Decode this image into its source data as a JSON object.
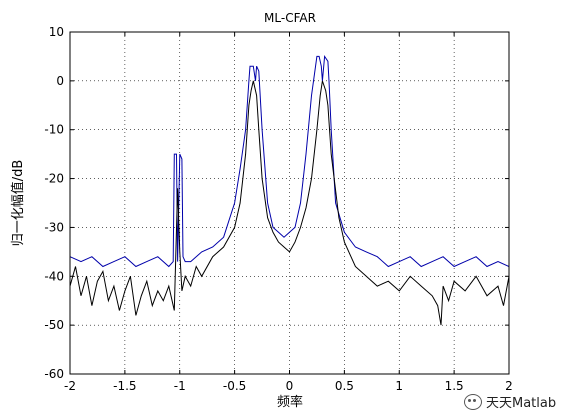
{
  "chart_data": {
    "type": "line",
    "title": "ML-CFAR",
    "xlabel": "频率",
    "ylabel": "归一化幅值/dB",
    "xlim": [
      -2,
      2
    ],
    "ylim": [
      -60,
      10
    ],
    "xticks": [
      -2,
      -1.5,
      -1,
      -0.5,
      0,
      0.5,
      1,
      1.5,
      2
    ],
    "xtick_labels": [
      "-2",
      "-1.5",
      "-1",
      "-0.5",
      "0",
      "0.5",
      "1",
      "1.5",
      "2"
    ],
    "yticks": [
      10,
      0,
      -10,
      -20,
      -30,
      -40,
      -50,
      -60
    ],
    "ytick_labels": [
      "10",
      "0",
      "-10",
      "-20",
      "-30",
      "-40",
      "-50",
      "-60"
    ],
    "grid": true,
    "series": [
      {
        "color": "#0000aa",
        "x": [
          -2.0,
          -1.9,
          -1.8,
          -1.7,
          -1.6,
          -1.5,
          -1.4,
          -1.3,
          -1.2,
          -1.1,
          -1.06,
          -1.05,
          -1.03,
          -1.02,
          -1.0,
          -0.98,
          -0.97,
          -0.95,
          -0.9,
          -0.8,
          -0.7,
          -0.6,
          -0.5,
          -0.45,
          -0.4,
          -0.37,
          -0.36,
          -0.33,
          -0.31,
          -0.3,
          -0.28,
          -0.25,
          -0.2,
          -0.15,
          -0.1,
          -0.05,
          0.0,
          0.05,
          0.1,
          0.15,
          0.2,
          0.25,
          0.27,
          0.29,
          0.3,
          0.32,
          0.35,
          0.36,
          0.38,
          0.42,
          0.5,
          0.6,
          0.7,
          0.8,
          0.9,
          1.0,
          1.1,
          1.2,
          1.3,
          1.4,
          1.5,
          1.6,
          1.7,
          1.8,
          1.9,
          2.0
        ],
        "y": [
          -36,
          -37,
          -36,
          -38,
          -37,
          -36,
          -38,
          -37,
          -36,
          -38,
          -37,
          -15,
          -15,
          -37,
          -15,
          -16,
          -36,
          -37,
          -37,
          -35,
          -34,
          -32,
          -25,
          -18,
          -10,
          0,
          3,
          3,
          0,
          3,
          2,
          -10,
          -25,
          -30,
          -31,
          -32,
          -31,
          -30,
          -25,
          -15,
          -3,
          5,
          5,
          3,
          0,
          5,
          4,
          0,
          -10,
          -25,
          -31,
          -34,
          -35,
          -36,
          -38,
          -37,
          -36,
          -38,
          -37,
          -36,
          -38,
          -37,
          -36,
          -38,
          -37,
          -38
        ]
      },
      {
        "color": "#000000",
        "x": [
          -2.0,
          -1.95,
          -1.9,
          -1.85,
          -1.8,
          -1.75,
          -1.7,
          -1.65,
          -1.6,
          -1.55,
          -1.5,
          -1.45,
          -1.4,
          -1.35,
          -1.3,
          -1.25,
          -1.2,
          -1.15,
          -1.1,
          -1.05,
          -1.02,
          -1.0,
          -0.98,
          -0.95,
          -0.9,
          -0.85,
          -0.8,
          -0.7,
          -0.6,
          -0.5,
          -0.45,
          -0.4,
          -0.37,
          -0.35,
          -0.33,
          -0.3,
          -0.28,
          -0.25,
          -0.2,
          -0.15,
          -0.1,
          -0.05,
          0.0,
          0.05,
          0.1,
          0.15,
          0.2,
          0.25,
          0.28,
          0.3,
          0.33,
          0.35,
          0.38,
          0.45,
          0.5,
          0.6,
          0.7,
          0.8,
          0.9,
          1.0,
          1.1,
          1.2,
          1.3,
          1.35,
          1.38,
          1.4,
          1.45,
          1.5,
          1.6,
          1.7,
          1.8,
          1.9,
          1.95,
          2.0
        ],
        "y": [
          -42,
          -38,
          -44,
          -40,
          -46,
          -41,
          -39,
          -45,
          -42,
          -47,
          -43,
          -40,
          -48,
          -44,
          -41,
          -46,
          -43,
          -45,
          -42,
          -47,
          -22,
          -35,
          -43,
          -40,
          -42,
          -38,
          -40,
          -36,
          -34,
          -30,
          -25,
          -15,
          -5,
          -2,
          0,
          -3,
          -10,
          -20,
          -28,
          -31,
          -33,
          -34,
          -35,
          -33,
          -30,
          -26,
          -20,
          -10,
          -3,
          0,
          -2,
          -5,
          -15,
          -28,
          -33,
          -38,
          -40,
          -42,
          -41,
          -43,
          -40,
          -42,
          -44,
          -46,
          -50,
          -42,
          -45,
          -41,
          -43,
          -40,
          -44,
          -42,
          -46,
          -40
        ]
      }
    ]
  },
  "watermark": {
    "text": "天天Matlab"
  }
}
